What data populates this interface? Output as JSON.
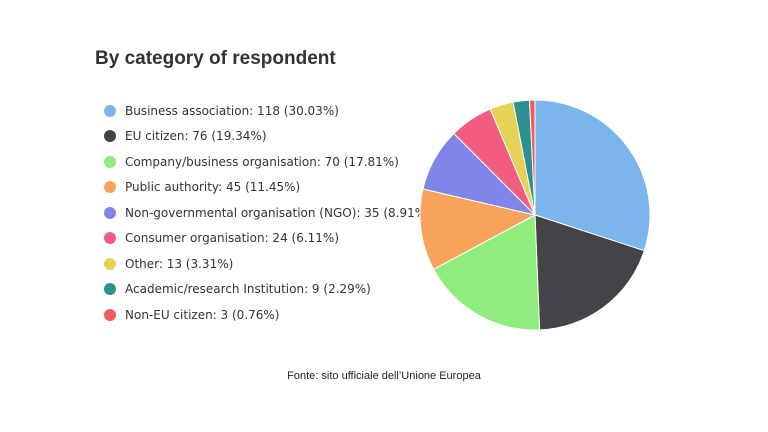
{
  "chart_data": {
    "type": "pie",
    "title": "By category of respondent",
    "slices": [
      {
        "label": "Business association",
        "value": 118,
        "percent": "30.03%",
        "color": "#7cb5ec"
      },
      {
        "label": "EU citizen",
        "value": 76,
        "percent": "19.34%",
        "color": "#434348"
      },
      {
        "label": "Company/business organisation",
        "value": 70,
        "percent": "17.81%",
        "color": "#90ed7d"
      },
      {
        "label": "Public authority",
        "value": 45,
        "percent": "11.45%",
        "color": "#f7a35c"
      },
      {
        "label": "Non-governmental organisation (NGO)",
        "value": 35,
        "percent": "8.91%",
        "color": "#8085e9"
      },
      {
        "label": "Consumer organisation",
        "value": 24,
        "percent": "6.11%",
        "color": "#f15c80"
      },
      {
        "label": "Other",
        "value": 13,
        "percent": "3.31%",
        "color": "#e4d354"
      },
      {
        "label": "Academic/research Institution",
        "value": 9,
        "percent": "2.29%",
        "color": "#2b908f"
      },
      {
        "label": "Non-EU citizen",
        "value": 3,
        "percent": "0.76%",
        "color": "#f45b5b"
      }
    ],
    "legend_position": "left"
  },
  "source_note": "Fonte: sito ufficiale dell’Unione Europea"
}
